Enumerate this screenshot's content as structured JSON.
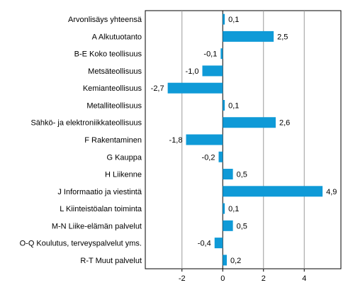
{
  "chart_data": {
    "type": "bar",
    "orientation": "horizontal",
    "categories": [
      "Arvonlisäys yhteensä",
      "A Alkutuotanto",
      "B-E Koko teollisuus",
      "Metsäteollisuus",
      "Kemianteollisuus",
      "Metalliteollisuus",
      "Sähkö- ja elektroniikkateollisuus",
      "F Rakentaminen",
      "G Kauppa",
      "H Liikenne",
      "J Informaatio ja viestintä",
      "L Kiinteistöalan toiminta",
      "M-N Liike-elämän palvelut",
      "O-Q Koulutus, terveyspalvelut yms.",
      "R-T Muut palvelut"
    ],
    "values": [
      0.1,
      2.5,
      -0.1,
      -1.0,
      -2.7,
      0.1,
      2.6,
      -1.8,
      -0.2,
      0.5,
      4.9,
      0.1,
      0.5,
      -0.4,
      0.2
    ],
    "value_labels": [
      "0,1",
      "2,5",
      "-0,1",
      "-1,0",
      "-2,7",
      "0,1",
      "2,6",
      "-1,8",
      "-0,2",
      "0,5",
      "4,9",
      "0,1",
      "0,5",
      "-0,4",
      "0,2"
    ],
    "xlim": [
      -3.8,
      5.8
    ],
    "xticks": [
      -2,
      0,
      2,
      4
    ],
    "xtick_labels": [
      "-2",
      "0",
      "2",
      "4"
    ],
    "grid": "vertical",
    "bar_color": "#0f9ad7",
    "grid_color": "#9a9a9a",
    "title": "",
    "xlabel": "",
    "ylabel": ""
  }
}
